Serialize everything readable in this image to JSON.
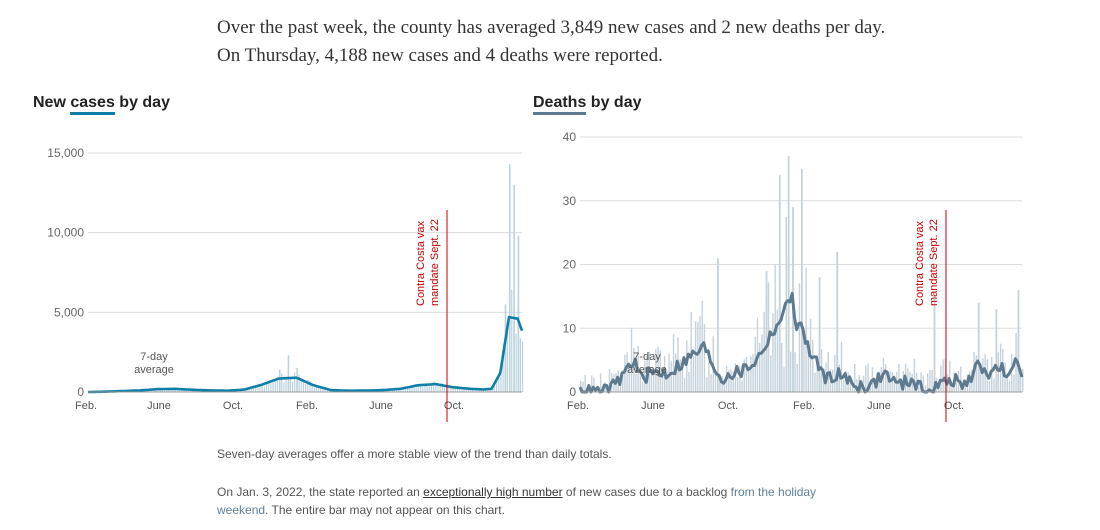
{
  "summary": {
    "text": "Over the past week, the county has averaged 3,849 new cases and 2 new deaths per day. On Thursday, 4,188 new cases and 4 deaths were reported."
  },
  "colors": {
    "cases_line": "#0f7ea8",
    "cases_bars": "#bcd3df",
    "deaths_line": "#5e7a8f",
    "deaths_bars": "#c5d2dc",
    "annotation": "#cc0000",
    "grid": "#dddddd"
  },
  "chart_data": [
    {
      "type": "bar",
      "title_prefix": "New ",
      "title_underlined": "cases",
      "title_suffix": " by day",
      "x_ticks": [
        "Feb.",
        "June",
        "Oct.",
        "Feb.",
        "June",
        "Oct."
      ],
      "y_ticks": [
        "15,000",
        "10,000",
        "5,000",
        "0"
      ],
      "ylim": [
        0,
        15000
      ],
      "avg_label_line1": "7-day",
      "avg_label_line2": "average",
      "annotation_line1": "Contra Costa vax",
      "annotation_line2": "mandate Sept. 22",
      "series": [
        {
          "name": "7-day average",
          "x": [
            0,
            4,
            8,
            12,
            16,
            20,
            24,
            28,
            32,
            36,
            40,
            44,
            48,
            52,
            56,
            60,
            64,
            68,
            72,
            76,
            80,
            84,
            88,
            91,
            93,
            95,
            97,
            99,
            100
          ],
          "values": [
            0,
            20,
            60,
            100,
            180,
            200,
            140,
            100,
            80,
            150,
            450,
            850,
            900,
            420,
            120,
            80,
            90,
            120,
            200,
            420,
            500,
            300,
            200,
            160,
            200,
            1200,
            4700,
            4600,
            3849
          ]
        },
        {
          "name": "daily cases (notable spikes)",
          "x": [
            44,
            46,
            48,
            96,
            97,
            98,
            99
          ],
          "values": [
            1400,
            2300,
            1500,
            5500,
            14300,
            13000,
            9800
          ]
        }
      ]
    },
    {
      "type": "bar",
      "title_prefix": "",
      "title_underlined": "Deaths",
      "title_suffix": " by day",
      "x_ticks": [
        "Feb.",
        "June",
        "Oct.",
        "Feb.",
        "June",
        "Oct."
      ],
      "y_ticks": [
        "40",
        "30",
        "20",
        "10",
        "0"
      ],
      "ylim": [
        0,
        40
      ],
      "avg_label_line1": "7-day",
      "avg_label_line2": "average",
      "annotation_line1": "Contra Costa vax",
      "annotation_line2": "mandate Sept. 22",
      "series": [
        {
          "name": "7-day average",
          "x": [
            0,
            5,
            8,
            10,
            12,
            14,
            16,
            20,
            24,
            28,
            32,
            34,
            36,
            38,
            40,
            44,
            46,
            48,
            49,
            50,
            52,
            54,
            56,
            58,
            60,
            63,
            66,
            69,
            72,
            75,
            78,
            81,
            84,
            87,
            90,
            93,
            95,
            97,
            99,
            100
          ],
          "values": [
            0,
            0,
            1,
            3,
            5,
            2,
            3,
            3,
            5,
            7,
            2,
            3,
            3,
            4,
            5,
            10,
            12,
            16,
            9,
            11,
            6,
            4,
            2,
            3,
            2,
            1,
            1,
            3,
            1,
            2,
            0,
            1,
            2,
            1,
            4,
            3,
            4,
            2,
            5,
            2
          ]
        },
        {
          "name": "daily deaths (notable spikes)",
          "x": [
            31,
            42,
            45,
            47,
            48,
            50,
            54,
            58,
            80,
            90,
            94,
            99
          ],
          "values": [
            21,
            19,
            34,
            37,
            29,
            35,
            18,
            22,
            15,
            14,
            13,
            16
          ]
        }
      ]
    }
  ],
  "notes": {
    "note1": "Seven-day averages offer a more stable view of the trend than daily totals.",
    "note2_part1": "On Jan. 3, 2022, the state reported an ",
    "note2_link": "exceptionally high number",
    "note2_part2": " of new cases due to a backlog ",
    "note2_link2": "from the holiday weekend",
    "note2_part3": ". The entire bar may not appear on this chart."
  }
}
